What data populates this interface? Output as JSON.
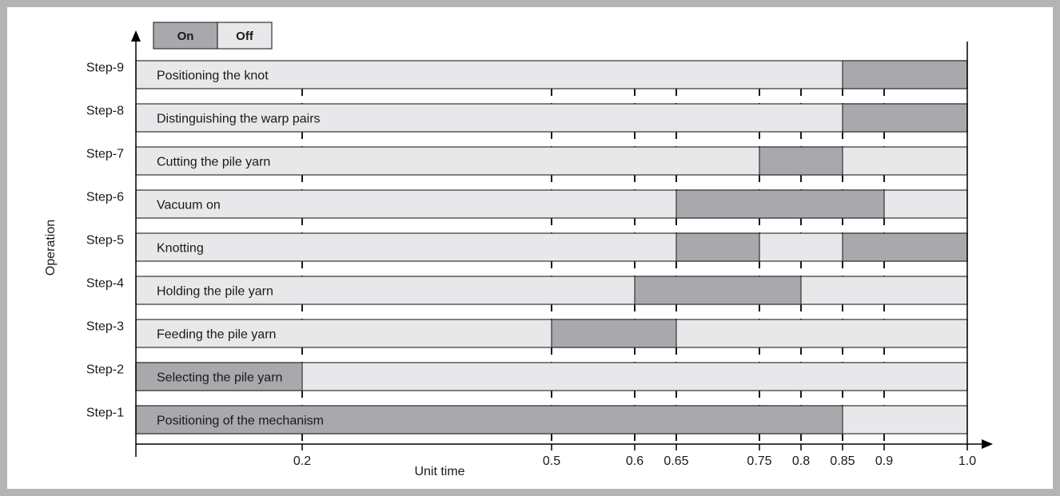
{
  "chart_data": {
    "type": "gantt",
    "xlabel": "Unit time",
    "ylabel": "Operation",
    "x_ticks": [
      0.2,
      0.5,
      0.6,
      0.65,
      0.75,
      0.8,
      0.85,
      0.9,
      1.0
    ],
    "x_tick_labels": [
      "0.2",
      "0.5",
      "0.6",
      "0.65",
      "0.75",
      "0.8",
      "0.85",
      "0.9",
      "1.0"
    ],
    "xlim": [
      0.0,
      1.0
    ],
    "legend": {
      "position": "top-left",
      "on_label": "On",
      "off_label": "Off"
    },
    "colors": {
      "on": "#a8a8ad",
      "off": "#e8e8ea",
      "border": "#333333"
    },
    "steps": [
      {
        "step": "Step-9",
        "label": "Positioning the knot",
        "on": [
          [
            0.85,
            1.0
          ]
        ]
      },
      {
        "step": "Step-8",
        "label": "Distinguishing the warp pairs",
        "on": [
          [
            0.85,
            1.0
          ]
        ]
      },
      {
        "step": "Step-7",
        "label": "Cutting the pile yarn",
        "on": [
          [
            0.75,
            0.85
          ]
        ]
      },
      {
        "step": "Step-6",
        "label": "Vacuum on",
        "on": [
          [
            0.65,
            0.9
          ]
        ]
      },
      {
        "step": "Step-5",
        "label": "Knotting",
        "on": [
          [
            0.65,
            0.75
          ],
          [
            0.85,
            1.0
          ]
        ]
      },
      {
        "step": "Step-4",
        "label": "Holding the pile yarn",
        "on": [
          [
            0.6,
            0.8
          ]
        ]
      },
      {
        "step": "Step-3",
        "label": "Feeding the pile yarn",
        "on": [
          [
            0.5,
            0.65
          ]
        ]
      },
      {
        "step": "Step-2",
        "label": "Selecting the pile yarn",
        "on": [
          [
            0.0,
            0.2
          ]
        ]
      },
      {
        "step": "Step-1",
        "label": "Positioning of the mechanism",
        "on": [
          [
            0.0,
            0.85
          ]
        ]
      }
    ]
  }
}
